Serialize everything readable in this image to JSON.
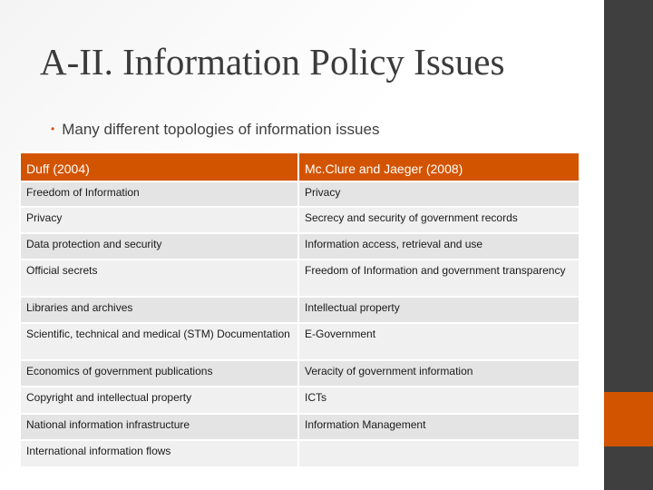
{
  "slide": {
    "title": "A-II. Information Policy Issues",
    "bullet": "Many different topologies of information issues",
    "accent_color": "#d35400",
    "header_color": "#d35400"
  },
  "table": {
    "headers": [
      "Duff (2004)",
      "Mc.Clure and Jaeger (2008)"
    ],
    "rows": [
      [
        "Freedom of Information",
        "Privacy"
      ],
      [
        "Privacy",
        "Secrecy and security of government records"
      ],
      [
        "Data protection and security",
        "Information access, retrieval and use"
      ],
      [
        "Official secrets",
        "Freedom of Information and government transparency"
      ],
      [
        "Libraries and archives",
        "Intellectual property"
      ],
      [
        "Scientific, technical and medical (STM) Documentation",
        "E-Government"
      ],
      [
        "Economics of government publications",
        "Veracity of government information"
      ],
      [
        "Copyright and intellectual property",
        "ICTs"
      ],
      [
        "National information infrastructure",
        "Information Management"
      ],
      [
        "International information flows",
        ""
      ]
    ]
  }
}
